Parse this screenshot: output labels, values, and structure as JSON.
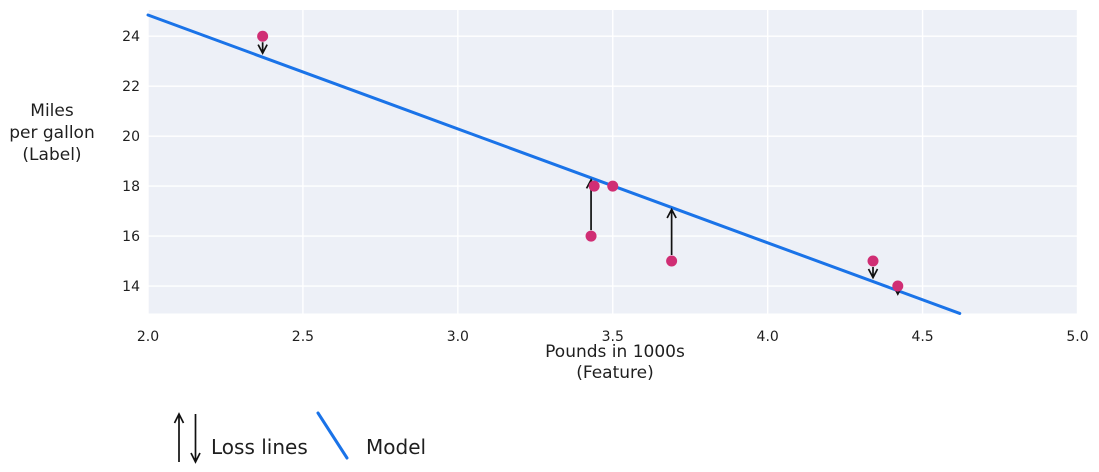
{
  "chart_data": {
    "type": "scatter",
    "title": "",
    "xlabel": "Pounds in 1000s\n(Feature)",
    "ylabel": "Miles\nper gallon\n(Label)",
    "xlim": [
      2.0,
      5.0
    ],
    "ylim": [
      12.9,
      25.05
    ],
    "grid": true,
    "x_ticks": [
      2.0,
      2.5,
      3.0,
      3.5,
      4.0,
      4.5,
      5.0
    ],
    "x_tick_labels": [
      "2.0",
      "2.5",
      "3.0",
      "3.5",
      "4.0",
      "4.5",
      "5.0"
    ],
    "y_ticks": [
      14,
      16,
      18,
      20,
      22,
      24
    ],
    "y_tick_labels": [
      "14",
      "16",
      "18",
      "20",
      "22",
      "24"
    ],
    "points": [
      {
        "x": 2.37,
        "y": 24,
        "loss_arrow": "down"
      },
      {
        "x": 3.43,
        "y": 16,
        "loss_arrow": "up"
      },
      {
        "x": 3.44,
        "y": 18,
        "loss_arrow": "none"
      },
      {
        "x": 3.5,
        "y": 18,
        "loss_arrow": "none"
      },
      {
        "x": 3.69,
        "y": 15,
        "loss_arrow": "up"
      },
      {
        "x": 4.34,
        "y": 15,
        "loss_arrow": "down"
      },
      {
        "x": 4.42,
        "y": 14,
        "loss_arrow": "down"
      }
    ],
    "model_line": {
      "slope": -4.56,
      "intercept": 33.97,
      "x_start": 2.0,
      "x_end": 4.62
    },
    "legend_position": "bottom-left",
    "legend": [
      {
        "symbol": "loss-arrows",
        "label": "Loss lines"
      },
      {
        "symbol": "model-line",
        "label": "Model"
      }
    ],
    "colors": {
      "point": "#d02e74",
      "model_line": "#1a73e8",
      "plot_background": "#edf0f7",
      "gridline": "#ffffff",
      "text": "#1f1f1f",
      "arrow": "#111111"
    }
  }
}
